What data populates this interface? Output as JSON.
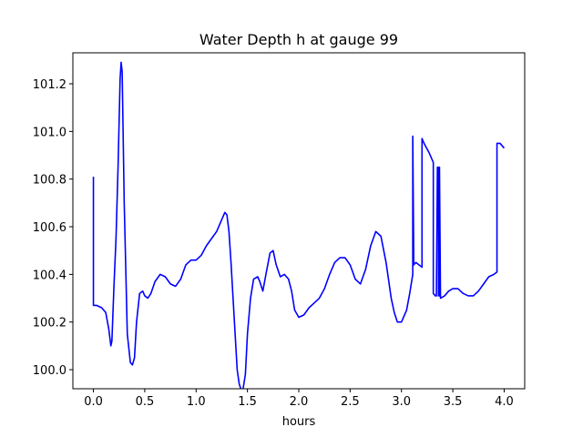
{
  "chart_data": {
    "type": "line",
    "title": "Water Depth h at gauge 99",
    "xlabel": "hours",
    "ylabel": "",
    "xlim": [
      -0.2,
      4.2
    ],
    "ylim": [
      99.92,
      101.33
    ],
    "xticks": [
      0.0,
      0.5,
      1.0,
      1.5,
      2.0,
      2.5,
      3.0,
      3.5,
      4.0
    ],
    "xtick_labels": [
      "0.0",
      "0.5",
      "1.0",
      "1.5",
      "2.0",
      "2.5",
      "3.0",
      "3.5",
      "4.0"
    ],
    "yticks": [
      100.0,
      100.2,
      100.4,
      100.6,
      100.8,
      101.0,
      101.2
    ],
    "ytick_labels": [
      "100.0",
      "100.2",
      "100.4",
      "100.6",
      "100.8",
      "101.0",
      "101.2"
    ],
    "grid": false,
    "series": [
      {
        "color": "#0000ff",
        "x": [
          0.0,
          0.0,
          0.03,
          0.08,
          0.12,
          0.15,
          0.17,
          0.18,
          0.2,
          0.22,
          0.24,
          0.26,
          0.27,
          0.28,
          0.3,
          0.33,
          0.36,
          0.38,
          0.4,
          0.42,
          0.45,
          0.48,
          0.5,
          0.53,
          0.56,
          0.6,
          0.65,
          0.7,
          0.75,
          0.8,
          0.85,
          0.9,
          0.95,
          1.0,
          1.05,
          1.1,
          1.15,
          1.2,
          1.25,
          1.28,
          1.3,
          1.32,
          1.34,
          1.36,
          1.38,
          1.4,
          1.42,
          1.45,
          1.48,
          1.5,
          1.53,
          1.56,
          1.6,
          1.62,
          1.65,
          1.68,
          1.72,
          1.75,
          1.78,
          1.82,
          1.86,
          1.9,
          1.93,
          1.96,
          2.0,
          2.05,
          2.1,
          2.15,
          2.2,
          2.25,
          2.3,
          2.35,
          2.4,
          2.45,
          2.5,
          2.55,
          2.6,
          2.65,
          2.7,
          2.75,
          2.8,
          2.85,
          2.9,
          2.93,
          2.96,
          3.0,
          3.05,
          3.08,
          3.11,
          3.11,
          3.12,
          3.14,
          3.17,
          3.2,
          3.2,
          3.22,
          3.27,
          3.31,
          3.31,
          3.33,
          3.34,
          3.35,
          3.36,
          3.36,
          3.37,
          3.37,
          3.38,
          3.42,
          3.46,
          3.5,
          3.55,
          3.6,
          3.65,
          3.7,
          3.75,
          3.8,
          3.85,
          3.9,
          3.93,
          3.93,
          3.96,
          3.98,
          4.0
        ],
        "y": [
          100.81,
          100.27,
          100.27,
          100.26,
          100.24,
          100.17,
          100.1,
          100.12,
          100.35,
          100.55,
          100.85,
          101.22,
          101.29,
          101.25,
          100.7,
          100.15,
          100.03,
          100.02,
          100.05,
          100.2,
          100.32,
          100.33,
          100.31,
          100.3,
          100.32,
          100.37,
          100.4,
          100.39,
          100.36,
          100.35,
          100.38,
          100.44,
          100.46,
          100.46,
          100.48,
          100.52,
          100.55,
          100.58,
          100.63,
          100.66,
          100.65,
          100.58,
          100.45,
          100.3,
          100.15,
          100.0,
          99.94,
          99.9,
          99.98,
          100.15,
          100.3,
          100.38,
          100.39,
          100.37,
          100.33,
          100.4,
          100.49,
          100.5,
          100.44,
          100.39,
          100.4,
          100.38,
          100.33,
          100.25,
          100.22,
          100.23,
          100.26,
          100.28,
          100.3,
          100.34,
          100.4,
          100.45,
          100.47,
          100.47,
          100.44,
          100.38,
          100.36,
          100.42,
          100.52,
          100.58,
          100.56,
          100.45,
          100.3,
          100.24,
          100.2,
          100.2,
          100.25,
          100.32,
          100.4,
          100.98,
          100.44,
          100.45,
          100.44,
          100.43,
          100.97,
          100.95,
          100.91,
          100.87,
          100.32,
          100.31,
          100.31,
          100.85,
          100.85,
          100.31,
          100.31,
          100.85,
          100.3,
          100.31,
          100.33,
          100.34,
          100.34,
          100.32,
          100.31,
          100.31,
          100.33,
          100.36,
          100.39,
          100.4,
          100.41,
          100.95,
          100.95,
          100.94,
          100.93
        ]
      }
    ]
  }
}
